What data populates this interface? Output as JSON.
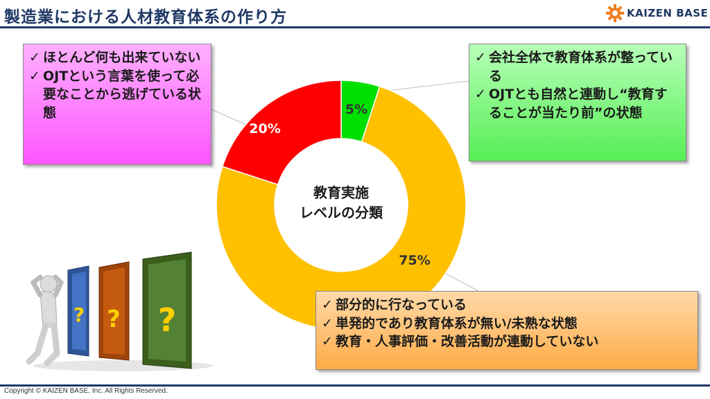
{
  "header": {
    "title": "製造業における人材教育体系の作り方",
    "logo_text": "KAIZEN BASE"
  },
  "footer": {
    "copyright": "Copyright ©  KAIZEN BASE, Inc.  All Rights Reserved."
  },
  "chart_data": {
    "type": "pie",
    "center_label": [
      "教育実施",
      "レベルの分類"
    ],
    "slices": [
      {
        "label": "5%",
        "value": 5,
        "color": "#00e000"
      },
      {
        "label": "75%",
        "value": 75,
        "color": "#ffc000"
      },
      {
        "label": "20%",
        "value": 20,
        "color": "#ff0000"
      }
    ]
  },
  "callouts": {
    "pink": {
      "color": "#ff66ff",
      "items": [
        {
          "check": "✓",
          "text": "ほとんど何も出来ていない"
        },
        {
          "check": "✓",
          "text": "OJTという言葉を使って必要なことから逃げている状態"
        }
      ]
    },
    "green": {
      "color": "#66ee66",
      "items": [
        {
          "check": "✓",
          "text": "会社全体で教育体系が整っている"
        },
        {
          "check": "✓",
          "text": "OJTとも自然と連動し“教育することが当たり前”の状態"
        }
      ]
    },
    "orange": {
      "color": "#ffb050",
      "items": [
        {
          "check": "✓",
          "text": "部分的に行なっている"
        },
        {
          "check": "✓",
          "text": "単発的であり教育体系が無い/未熟な状態"
        },
        {
          "check": "✓",
          "text": "教育・人事評価・改善活動が連動していない"
        }
      ]
    }
  },
  "illustration": {
    "door_marks": [
      "?",
      "?",
      "?"
    ]
  }
}
